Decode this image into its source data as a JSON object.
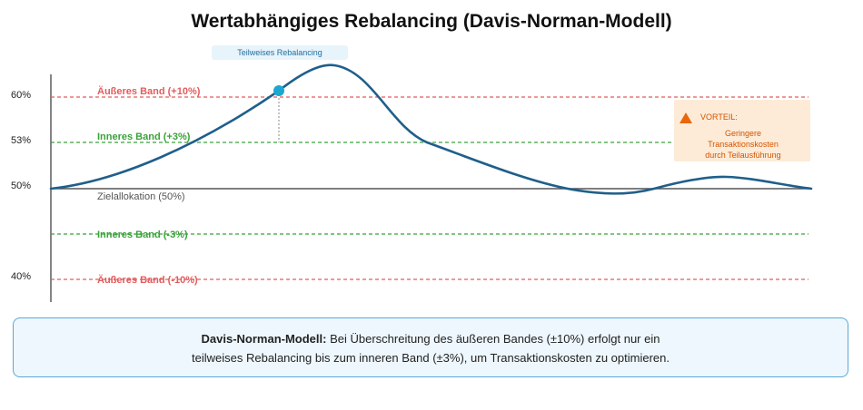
{
  "title": "Wertabhängiges Rebalancing (Davis-Norman-Modell)",
  "chart_data": {
    "type": "line",
    "y_ticks": [
      "60%",
      "53%",
      "50%",
      "40%"
    ],
    "bands": {
      "outer_upper": "Äußeres Band (+10%)",
      "inner_upper": "Inneres Band (+3%)",
      "target": "Zielallokation (50%)",
      "inner_lower": "Inneres Band (-3%)",
      "outer_lower": "Äußeres Band (-10%)"
    },
    "rebalance_callout": "Teilweises Rebalancing",
    "advantage": {
      "title": "VORTEIL:",
      "lines": [
        "Geringere",
        "Transaktionskosten",
        "durch Teilausführung"
      ]
    },
    "colors": {
      "curve": "#1f5f8b",
      "outer_band": "#e25c5c",
      "inner_band": "#3aa23a",
      "target_line": "#555555",
      "rebalance_point": "#1aa7d0",
      "advantage": "#e8660c"
    }
  },
  "info": {
    "bold": "Davis-Norman-Modell:",
    "text1": " Bei Überschreitung des äußeren Bandes (±10%) erfolgt nur ein",
    "text2": "teilweises Rebalancing bis zum inneren Band (±3%), um Transaktionskosten zu optimieren."
  }
}
